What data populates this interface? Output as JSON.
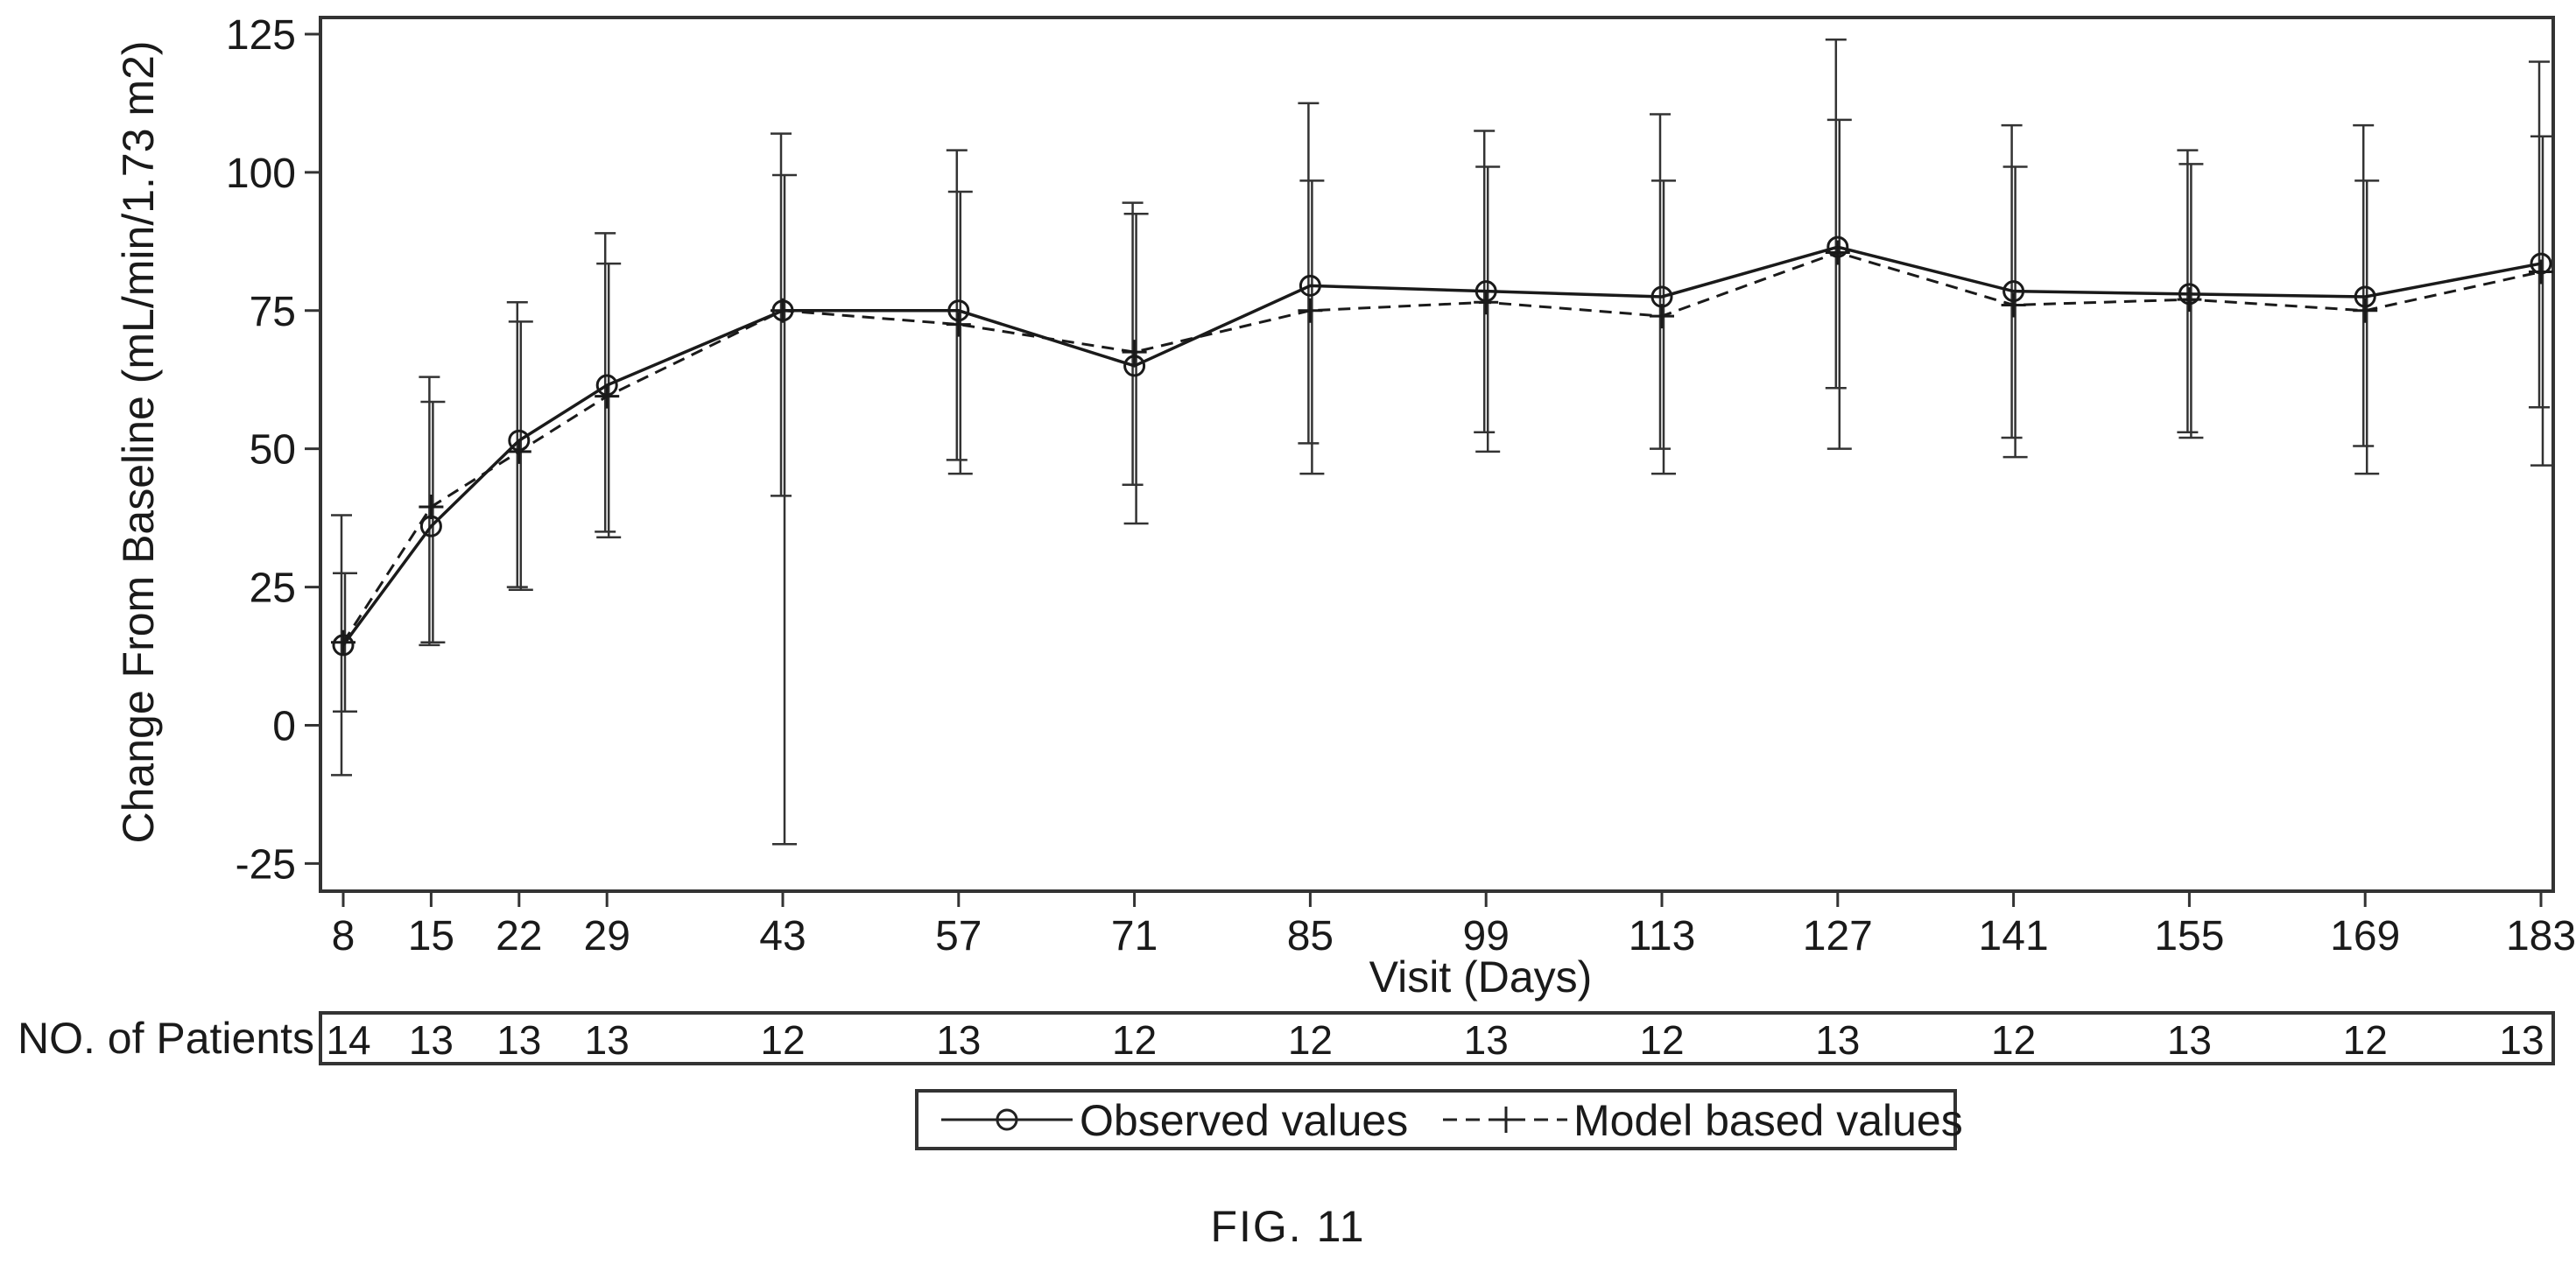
{
  "figure_label": "FIG. 11",
  "patients_label": "NO. of Patients",
  "patient_counts": [
    "14",
    "13",
    "13",
    "13",
    "12",
    "13",
    "12",
    "12",
    "13",
    "12",
    "13",
    "12",
    "13",
    "12",
    "13"
  ],
  "legend": {
    "observed_label": "Observed values",
    "model_label": "Model based values"
  },
  "chart_data": {
    "type": "line",
    "title": "",
    "xlabel": "Visit (Days)",
    "ylabel": "Change From Baseline (mL/min/1.73 m2)",
    "x": [
      8,
      15,
      22,
      29,
      43,
      57,
      71,
      85,
      99,
      113,
      127,
      141,
      155,
      169,
      183
    ],
    "xlim": [
      8,
      183
    ],
    "ylim": [
      -30,
      128
    ],
    "yticks": [
      -25,
      0,
      25,
      50,
      75,
      100,
      125
    ],
    "legend_position": "bottom-center",
    "grid": false,
    "series": [
      {
        "name": "Observed values",
        "marker": "circle",
        "line_style": "solid",
        "values": [
          14.5,
          36,
          51.5,
          61.5,
          75,
          75,
          65,
          79.5,
          78.5,
          77.5,
          86.5,
          78.5,
          78,
          77.5,
          83.5
        ],
        "lower": [
          -9,
          14.5,
          25,
          35,
          41.5,
          48,
          43.5,
          51,
          53,
          50,
          61,
          52,
          53,
          50.5,
          57.5
        ],
        "upper": [
          38,
          63,
          76.5,
          89,
          107,
          104,
          94.5,
          112.5,
          107.5,
          110.5,
          124,
          108.5,
          104,
          108.5,
          120
        ]
      },
      {
        "name": "Model based values",
        "marker": "plus",
        "line_style": "dashed",
        "values": [
          15,
          39.5,
          49.5,
          59.5,
          75,
          72.5,
          67.5,
          75,
          76.5,
          74,
          85.5,
          76,
          77,
          75,
          82
        ],
        "lower": [
          2.5,
          15,
          24.5,
          34,
          -21.5,
          45.5,
          36.5,
          45.5,
          49.5,
          45.5,
          50,
          48.5,
          52,
          45.5,
          47
        ],
        "upper": [
          27.5,
          58.5,
          73,
          83.5,
          99.5,
          96.5,
          92.5,
          98.5,
          101,
          98.5,
          109.5,
          101,
          101.5,
          98.5,
          106.5
        ]
      }
    ]
  }
}
